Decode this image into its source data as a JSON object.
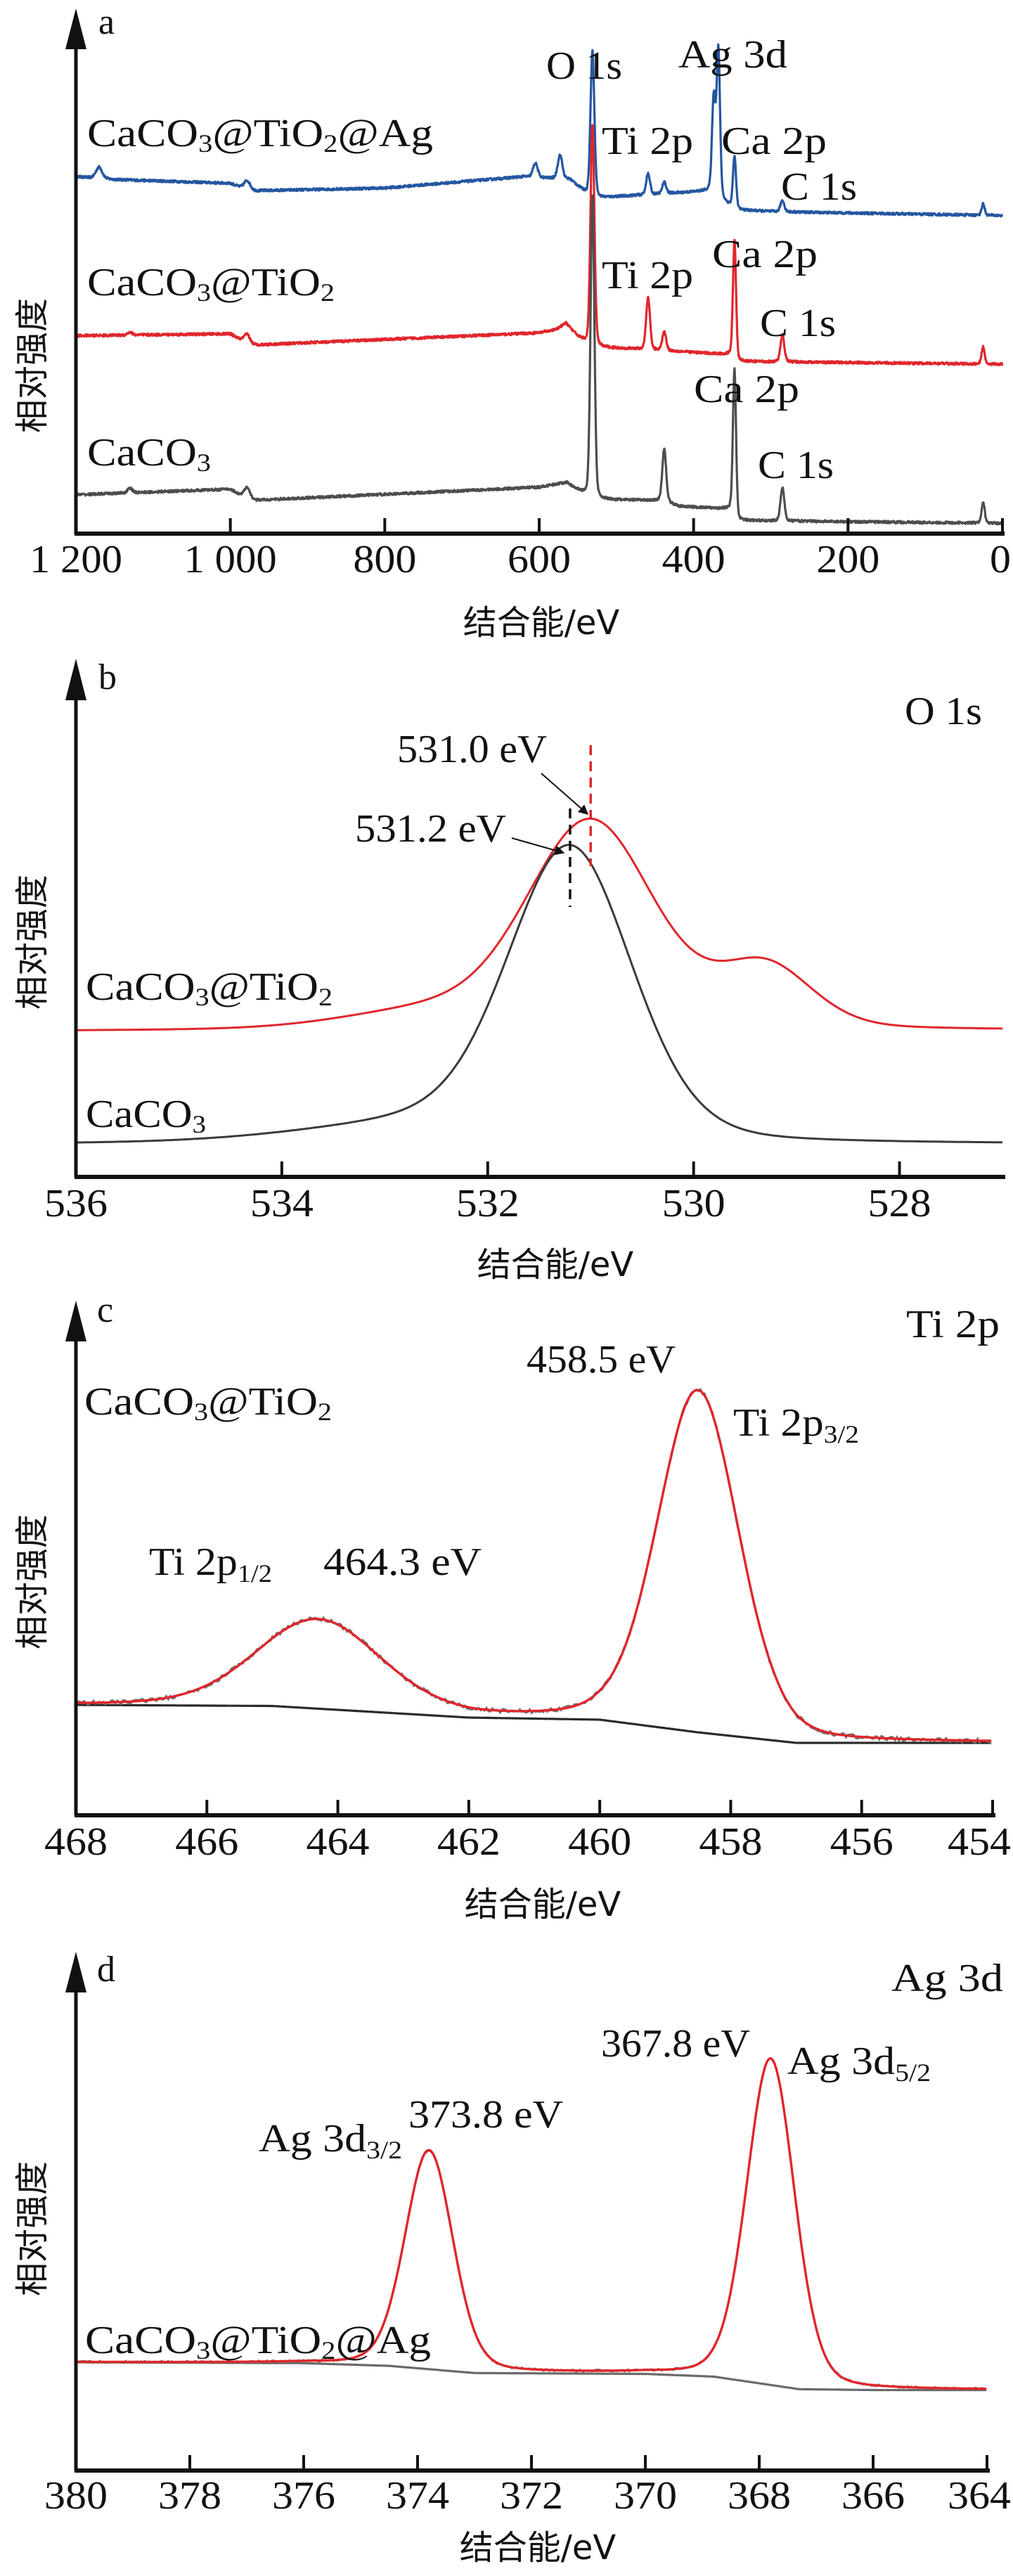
{
  "figure": {
    "y_axis_label": "相对强度",
    "x_axis_label": "结合能/eV"
  },
  "chart_data": [
    {
      "panel": "a",
      "type": "line",
      "title": "",
      "xlabel": "结合能/eV",
      "ylabel": "相对强度",
      "xlim": [
        1200,
        0
      ],
      "x_reversed": true,
      "xticks": [
        1200,
        1000,
        800,
        600,
        400,
        200,
        0
      ],
      "xtick_labels": [
        "1 200",
        "1 000",
        "800",
        "600",
        "400",
        "200",
        "0"
      ],
      "yticks": [],
      "grid": false,
      "series": [
        {
          "name": "CaCO3@TiO2@Ag",
          "color": "#2456a0",
          "offset": 2.3,
          "baseline": [
            [
              1200,
              0.45
            ],
            [
              1150,
              0.42
            ],
            [
              1000,
              0.38
            ],
            [
              975,
              0.3
            ],
            [
              800,
              0.33
            ],
            [
              620,
              0.45
            ],
            [
              560,
              0.42
            ],
            [
              531,
              0.22
            ],
            [
              500,
              0.24
            ],
            [
              380,
              0.3
            ],
            [
              345,
              0.1
            ],
            [
              290,
              0.08
            ],
            [
              0,
              0.04
            ]
          ],
          "peaks": [
            [
              1170,
              0.12,
              4
            ],
            [
              978,
              0.1,
              4
            ],
            [
              605,
              0.15,
              3
            ],
            [
              573,
              0.25,
              3
            ],
            [
              531,
              1.55,
              2.5
            ],
            [
              459,
              0.22,
              2.5
            ],
            [
              438,
              0.12,
              2.5
            ],
            [
              374,
              1.0,
              2.2
            ],
            [
              368,
              1.55,
              2.2
            ],
            [
              347,
              0.55,
              2
            ],
            [
              285,
              0.12,
              2.5
            ],
            [
              25,
              0.12,
              2
            ]
          ]
        },
        {
          "name": "CaCO3@TiO2",
          "color": "#e0262c",
          "offset": 1.2,
          "baseline": [
            [
              1200,
              0.3
            ],
            [
              1000,
              0.32
            ],
            [
              975,
              0.2
            ],
            [
              600,
              0.33
            ],
            [
              565,
              0.38
            ],
            [
              531,
              0.18
            ],
            [
              470,
              0.16
            ],
            [
              350,
              0.1
            ],
            [
              345,
              0.03
            ],
            [
              0,
              0.0
            ]
          ],
          "peaks": [
            [
              1130,
              0.03,
              3
            ],
            [
              978,
              0.1,
              4
            ],
            [
              565,
              0.05,
              6
            ],
            [
              531,
              2.35,
              2.5
            ],
            [
              459,
              0.55,
              2.5
            ],
            [
              438,
              0.2,
              2.5
            ],
            [
              347,
              1.25,
              2
            ],
            [
              285,
              0.28,
              2.5
            ],
            [
              25,
              0.18,
              2
            ]
          ]
        },
        {
          "name": "CaCO3",
          "color": "#4d4d4d",
          "offset": 0.0,
          "baseline": [
            [
              1200,
              0.32
            ],
            [
              1000,
              0.38
            ],
            [
              975,
              0.26
            ],
            [
              600,
              0.4
            ],
            [
              565,
              0.45
            ],
            [
              531,
              0.27
            ],
            [
              440,
              0.26
            ],
            [
              420,
              0.2
            ],
            [
              350,
              0.17
            ],
            [
              345,
              0.05
            ],
            [
              0,
              0.02
            ]
          ],
          "peaks": [
            [
              1130,
              0.05,
              3
            ],
            [
              978,
              0.12,
              4
            ],
            [
              531,
              3.2,
              2.5
            ],
            [
              438,
              0.55,
              2.5
            ],
            [
              347,
              1.55,
              2
            ],
            [
              285,
              0.35,
              2.5
            ],
            [
              25,
              0.22,
              2
            ]
          ]
        }
      ],
      "annotations": [
        {
          "text": "CaCO3@TiO2@Ag",
          "series": "CaCO3@TiO2@Ag",
          "role": "series-label"
        },
        {
          "text": "CaCO3@TiO2",
          "series": "CaCO3@TiO2",
          "role": "series-label"
        },
        {
          "text": "CaCO3",
          "series": "CaCO3",
          "role": "series-label"
        },
        {
          "text": "O 1s",
          "x": 531
        },
        {
          "text": "Ag 3d",
          "x": 370
        },
        {
          "text": "Ti 2p",
          "x": 459,
          "series": "CaCO3@TiO2@Ag"
        },
        {
          "text": "Ca 2p",
          "x": 347,
          "series": "CaCO3@TiO2@Ag"
        },
        {
          "text": "C 1s",
          "x": 285,
          "series": "CaCO3@TiO2@Ag"
        },
        {
          "text": "Ti 2p",
          "x": 459,
          "series": "CaCO3@TiO2"
        },
        {
          "text": "Ca 2p",
          "x": 347,
          "series": "CaCO3@TiO2"
        },
        {
          "text": "C 1s",
          "x": 285,
          "series": "CaCO3@TiO2"
        },
        {
          "text": "Ca 2p",
          "x": 347,
          "series": "CaCO3"
        },
        {
          "text": "C 1s",
          "x": 285,
          "series": "CaCO3"
        }
      ]
    },
    {
      "panel": "b",
      "type": "line",
      "title": "O 1s",
      "xlabel": "结合能/eV",
      "ylabel": "相对强度",
      "xlim": [
        536,
        527
      ],
      "x_reversed": true,
      "xticks": [
        536,
        534,
        532,
        530,
        528
      ],
      "xtick_labels": [
        "536",
        "534",
        "532",
        "530",
        "528"
      ],
      "grid": false,
      "series": [
        {
          "name": "CaCO3@TiO2",
          "color": "#e0262c",
          "offset": 0.72,
          "baseline": [
            [
              536,
              0.0
            ],
            [
              527,
              -0.02
            ]
          ],
          "peaks": [
            [
              531.0,
              0.95,
              0.62
            ],
            [
              529.3,
              0.28,
              0.45
            ],
            [
              532.6,
              0.08,
              0.8
            ]
          ]
        },
        {
          "name": "CaCO3",
          "color": "#3a3a3a",
          "offset": 0.0,
          "baseline": [
            [
              536,
              0.0
            ],
            [
              527,
              -0.01
            ]
          ],
          "peaks": [
            [
              531.2,
              1.0,
              0.6
            ],
            [
              532.5,
              0.07,
              1.2
            ]
          ]
        }
      ],
      "peak_markers": [
        {
          "label": "531.0 eV",
          "x": 531.0,
          "series": "CaCO3@TiO2",
          "color": "#e0262c",
          "style": "dashed"
        },
        {
          "label": "531.2 eV",
          "x": 531.2,
          "series": "CaCO3",
          "color": "#111111",
          "style": "dashed"
        }
      ],
      "annotations": [
        {
          "text": "CaCO3@TiO2",
          "role": "series-label"
        },
        {
          "text": "CaCO3",
          "role": "series-label"
        }
      ]
    },
    {
      "panel": "c",
      "type": "line",
      "title": "Ti 2p",
      "sample": "CaCO3@TiO2",
      "xlabel": "结合能/eV",
      "ylabel": "相对强度",
      "xlim": [
        468,
        454
      ],
      "x_reversed": true,
      "xticks": [
        468,
        466,
        464,
        462,
        460,
        458,
        456,
        454
      ],
      "xtick_labels": [
        "468",
        "466",
        "464",
        "462",
        "460",
        "458",
        "456",
        "454"
      ],
      "grid": false,
      "series": [
        {
          "name": "raw",
          "color": "#707070",
          "role": "measured"
        },
        {
          "name": "fit",
          "color": "#e0262c",
          "role": "envelope"
        },
        {
          "name": "background",
          "color": "#2a2a2a",
          "role": "shirley-background"
        }
      ],
      "background": [
        [
          468,
          0.0
        ],
        [
          465,
          -0.005
        ],
        [
          462,
          -0.06
        ],
        [
          460,
          -0.07
        ],
        [
          458.5,
          -0.13
        ],
        [
          457,
          -0.18
        ],
        [
          454,
          -0.18
        ]
      ],
      "peaks": [
        {
          "label": "Ti 2p1/2",
          "x": 464.3,
          "height": 0.42,
          "width": 0.95
        },
        {
          "label": "Ti 2p3/2",
          "x": 458.5,
          "height": 1.62,
          "width": 0.62
        }
      ],
      "annotations": [
        {
          "text": "CaCO3@TiO2",
          "role": "sample-label"
        },
        {
          "text": "458.5 eV",
          "x": 458.5
        },
        {
          "text": "Ti 2p3/2",
          "x": 458.5
        },
        {
          "text": "Ti 2p1/2",
          "x": 464.3
        },
        {
          "text": "464.3 eV",
          "x": 464.3
        }
      ]
    },
    {
      "panel": "d",
      "type": "line",
      "title": "Ag 3d",
      "sample": "CaCO3@TiO2@Ag",
      "xlabel": "结合能/eV",
      "ylabel": "相对强度",
      "xlim": [
        380,
        364
      ],
      "x_reversed": true,
      "xticks": [
        380,
        378,
        376,
        374,
        372,
        370,
        368,
        366,
        364
      ],
      "xtick_labels": [
        "380",
        "378",
        "376",
        "374",
        "372",
        "370",
        "368",
        "366",
        "364"
      ],
      "grid": false,
      "series": [
        {
          "name": "raw",
          "color": "#707070",
          "role": "measured"
        },
        {
          "name": "fit",
          "color": "#e0262c",
          "role": "envelope"
        },
        {
          "name": "background",
          "color": "#6a6a6a",
          "role": "shirley-background"
        }
      ],
      "background": [
        [
          380,
          0.0
        ],
        [
          376,
          -0.005
        ],
        [
          374.5,
          -0.02
        ],
        [
          373,
          -0.06
        ],
        [
          370,
          -0.065
        ],
        [
          368.8,
          -0.08
        ],
        [
          367.3,
          -0.15
        ],
        [
          366,
          -0.155
        ],
        [
          364,
          -0.155
        ]
      ],
      "peaks": [
        {
          "label": "Ag 3d3/2",
          "x": 373.8,
          "height": 1.22,
          "width": 0.42
        },
        {
          "label": "Ag 3d5/2",
          "x": 367.8,
          "height": 1.82,
          "width": 0.42
        }
      ],
      "annotations": [
        {
          "text": "CaCO3@TiO2@Ag",
          "role": "sample-label"
        },
        {
          "text": "367.8 eV",
          "x": 367.8
        },
        {
          "text": "Ag 3d5/2",
          "x": 367.8
        },
        {
          "text": "Ag 3d3/2",
          "x": 373.8
        },
        {
          "text": "373.8 eV",
          "x": 373.8
        }
      ]
    }
  ],
  "labels": {
    "a": {
      "panel_letter": "a",
      "o1s": "O 1s",
      "ag3d": "Ag 3d",
      "s1": {
        "pre": "CaCO",
        "sub1": "3",
        "mid": "@TiO",
        "sub2": "2",
        "post": "@Ag"
      },
      "s2": {
        "pre": "CaCO",
        "sub1": "3",
        "mid": "@TiO",
        "sub2": "2"
      },
      "s3": {
        "pre": "CaCO",
        "sub1": "3"
      },
      "ti2p": "Ti 2p",
      "ca2p": "Ca 2p",
      "c1s": "C 1s"
    },
    "b": {
      "panel_letter": "b",
      "title": "O 1s",
      "m1": "531.0 eV",
      "m2": "531.2 eV",
      "s1": {
        "pre": "CaCO",
        "sub1": "3",
        "mid": "@TiO",
        "sub2": "2"
      },
      "s2": {
        "pre": "CaCO",
        "sub1": "3"
      }
    },
    "c": {
      "panel_letter": "c",
      "title": "Ti 2p",
      "sample": {
        "pre": "CaCO",
        "sub1": "3",
        "mid": "@TiO",
        "sub2": "2"
      },
      "p1_value": "458.5 eV",
      "p1_name": {
        "main": "Ti 2p",
        "sub": "3/2"
      },
      "p2_value": "464.3 eV",
      "p2_name": {
        "main": "Ti 2p",
        "sub": "1/2"
      }
    },
    "d": {
      "panel_letter": "d",
      "title": "Ag 3d",
      "sample": {
        "pre": "CaCO",
        "sub1": "3",
        "mid": "@TiO",
        "sub2": "2",
        "post": "@Ag"
      },
      "p1_value": "367.8 eV",
      "p1_name": {
        "main": "Ag 3d",
        "sub": "5/2"
      },
      "p2_value": "373.8 eV",
      "p2_name": {
        "main": "Ag 3d",
        "sub": "3/2"
      }
    }
  }
}
